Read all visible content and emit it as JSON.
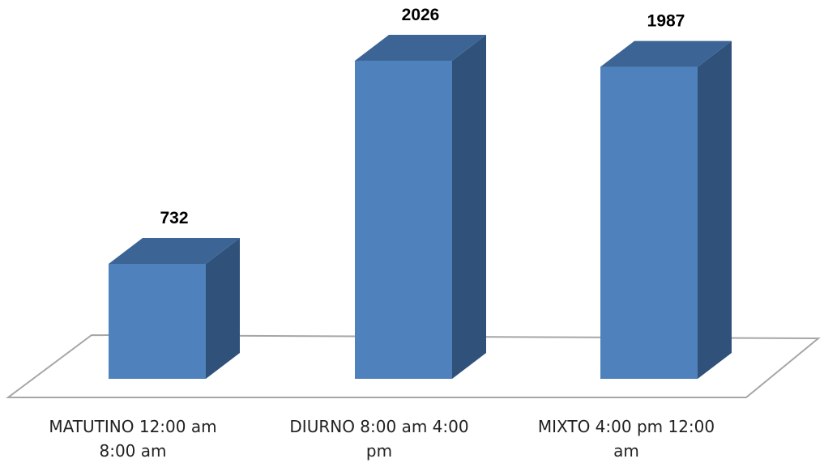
{
  "chart_data": {
    "type": "bar",
    "style": "3d-column",
    "categories": [
      "MATUTINO 12:00 am 8:00 am",
      "DIURNO 8:00 am 4:00 pm",
      "MIXTO 4:00 pm 12:00 am"
    ],
    "category_lines": [
      [
        "MATUTINO 12:00 am",
        "8:00 am"
      ],
      [
        "DIURNO 8:00 am 4:00",
        "pm"
      ],
      [
        "MIXTO 4:00 pm 12:00",
        "am"
      ]
    ],
    "values": [
      732,
      2026,
      1987
    ],
    "data_labels": [
      "732",
      "2026",
      "1987"
    ],
    "ylim": [
      0,
      2026
    ],
    "grid": false,
    "legend": "none",
    "colors": {
      "front": "#4F81BD",
      "top": "#3C6596",
      "side": "#30527A",
      "floor": "#A6A6A6"
    }
  }
}
